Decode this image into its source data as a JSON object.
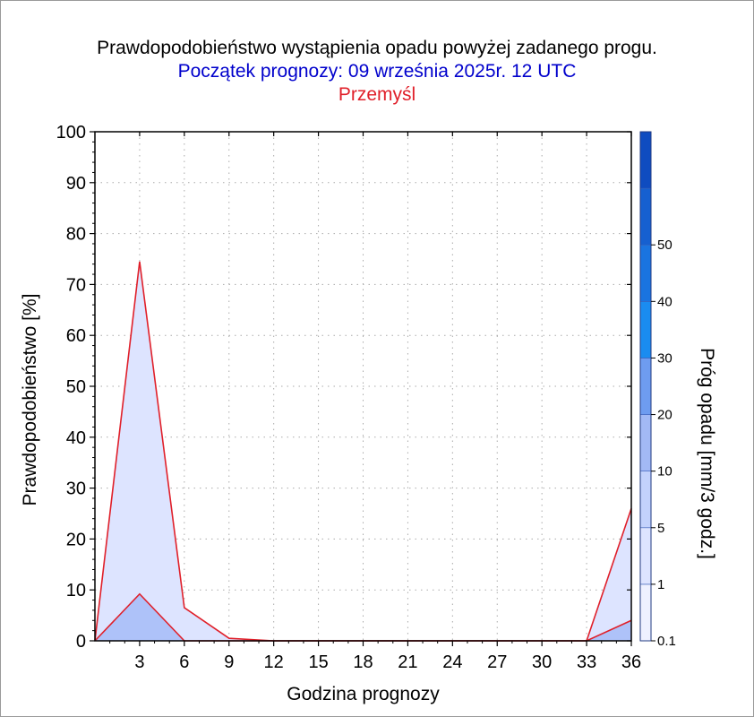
{
  "titles": {
    "main": "Prawdopodobieństwo wystąpienia opadu powyżej zadanego progu.",
    "forecast_start": "Początek prognozy: 09 września 2025r. 12 UTC",
    "location": "Przemyśl"
  },
  "colors": {
    "title": "#000000",
    "forecast_start": "#0000cc",
    "location": "#e0202a",
    "outline": "#e0202a",
    "grid": "#aaaaaa"
  },
  "chart_data": {
    "type": "area",
    "xlabel": "Godzina prognozy",
    "ylabel": "Prawdopodobieństwo [%]",
    "x_ticks": [
      3,
      6,
      9,
      12,
      15,
      18,
      21,
      24,
      27,
      30,
      33,
      36
    ],
    "y_ticks": [
      0,
      10,
      20,
      30,
      40,
      50,
      60,
      70,
      80,
      90,
      100
    ],
    "xlim": [
      0,
      36
    ],
    "ylim": [
      0,
      100
    ],
    "grid": true,
    "x": [
      0,
      3,
      6,
      9,
      12,
      15,
      18,
      21,
      24,
      27,
      30,
      33,
      36
    ],
    "series": [
      {
        "threshold": "0.1",
        "color": "#dde4ff",
        "values": [
          0,
          74.5,
          6.5,
          0.5,
          0,
          0,
          0,
          0,
          0,
          0,
          0,
          0,
          26
        ]
      },
      {
        "threshold": "1",
        "color": "#aec2f9",
        "values": [
          0,
          9.2,
          0,
          0,
          0,
          0,
          0,
          0,
          0,
          0,
          0,
          0,
          4
        ]
      }
    ],
    "colorbar": {
      "label": "Próg opadu [mm/3 godz.]",
      "bands": [
        {
          "from": 0.1,
          "to": 1,
          "color": "#eef1ff"
        },
        {
          "from": 1,
          "to": 5,
          "color": "#dde4ff"
        },
        {
          "from": 5,
          "to": 10,
          "color": "#c3d2fc"
        },
        {
          "from": 10,
          "to": 20,
          "color": "#a2b9f5"
        },
        {
          "from": 20,
          "to": 30,
          "color": "#6e9cf0"
        },
        {
          "from": 30,
          "to": 40,
          "color": "#1a8cf0"
        },
        {
          "from": 40,
          "to": 50,
          "color": "#1a74e0"
        },
        {
          "from": 50,
          "to": 60,
          "color": "#1660d0"
        },
        {
          "from": 60,
          "to": 70,
          "color": "#0f4cc0"
        }
      ],
      "tick_labels": [
        "0.1",
        "1",
        "5",
        "10",
        "20",
        "30",
        "40",
        "50"
      ]
    }
  }
}
